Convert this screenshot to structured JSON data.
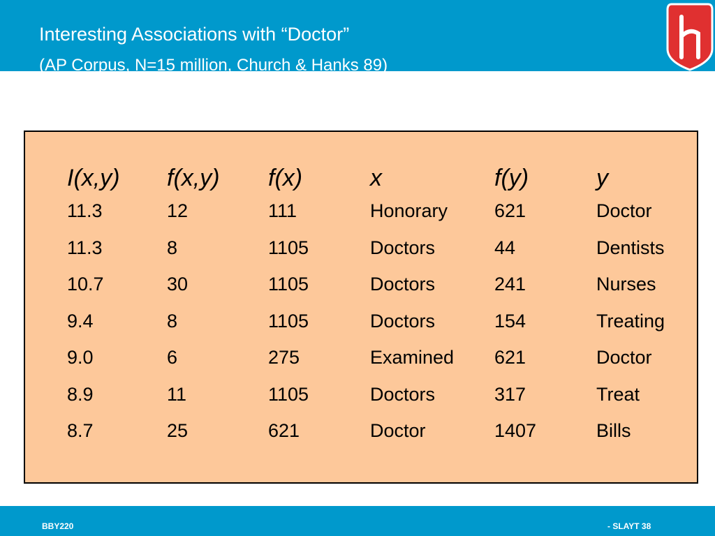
{
  "slide": {
    "title": "Interesting Associations with “Doctor”",
    "subtitle": "(AP Corpus, N=15 million, Church & Hanks 89)"
  },
  "table": {
    "headers": [
      "I(x,y)",
      "f(x,y)",
      "f(x)",
      "x",
      "f(y)",
      "y"
    ],
    "rows": [
      [
        "11.3",
        "12",
        "111",
        "Honorary",
        "621",
        "Doctor"
      ],
      [
        "11.3",
        "8",
        "1105",
        "Doctors",
        "44",
        "Dentists"
      ],
      [
        "10.7",
        "30",
        "1105",
        "Doctors",
        "241",
        "Nurses"
      ],
      [
        "9.4",
        "8",
        "1105",
        "Doctors",
        "154",
        "Treating"
      ],
      [
        "9.0",
        "6",
        "275",
        "Examined",
        "621",
        "Doctor"
      ],
      [
        "8.9",
        "11",
        "1105",
        "Doctors",
        "317",
        "Treat"
      ],
      [
        "8.7",
        "25",
        "621",
        "Doctor",
        "1407",
        "Bills"
      ]
    ]
  },
  "footer": {
    "left": "BBY220",
    "right": "- SLAYT 38"
  },
  "colors": {
    "header_bg": "#0099cc",
    "table_bg": "#fdc89a",
    "logo_red": "#e03030"
  },
  "icons": {
    "logo": "university-logo-icon"
  }
}
